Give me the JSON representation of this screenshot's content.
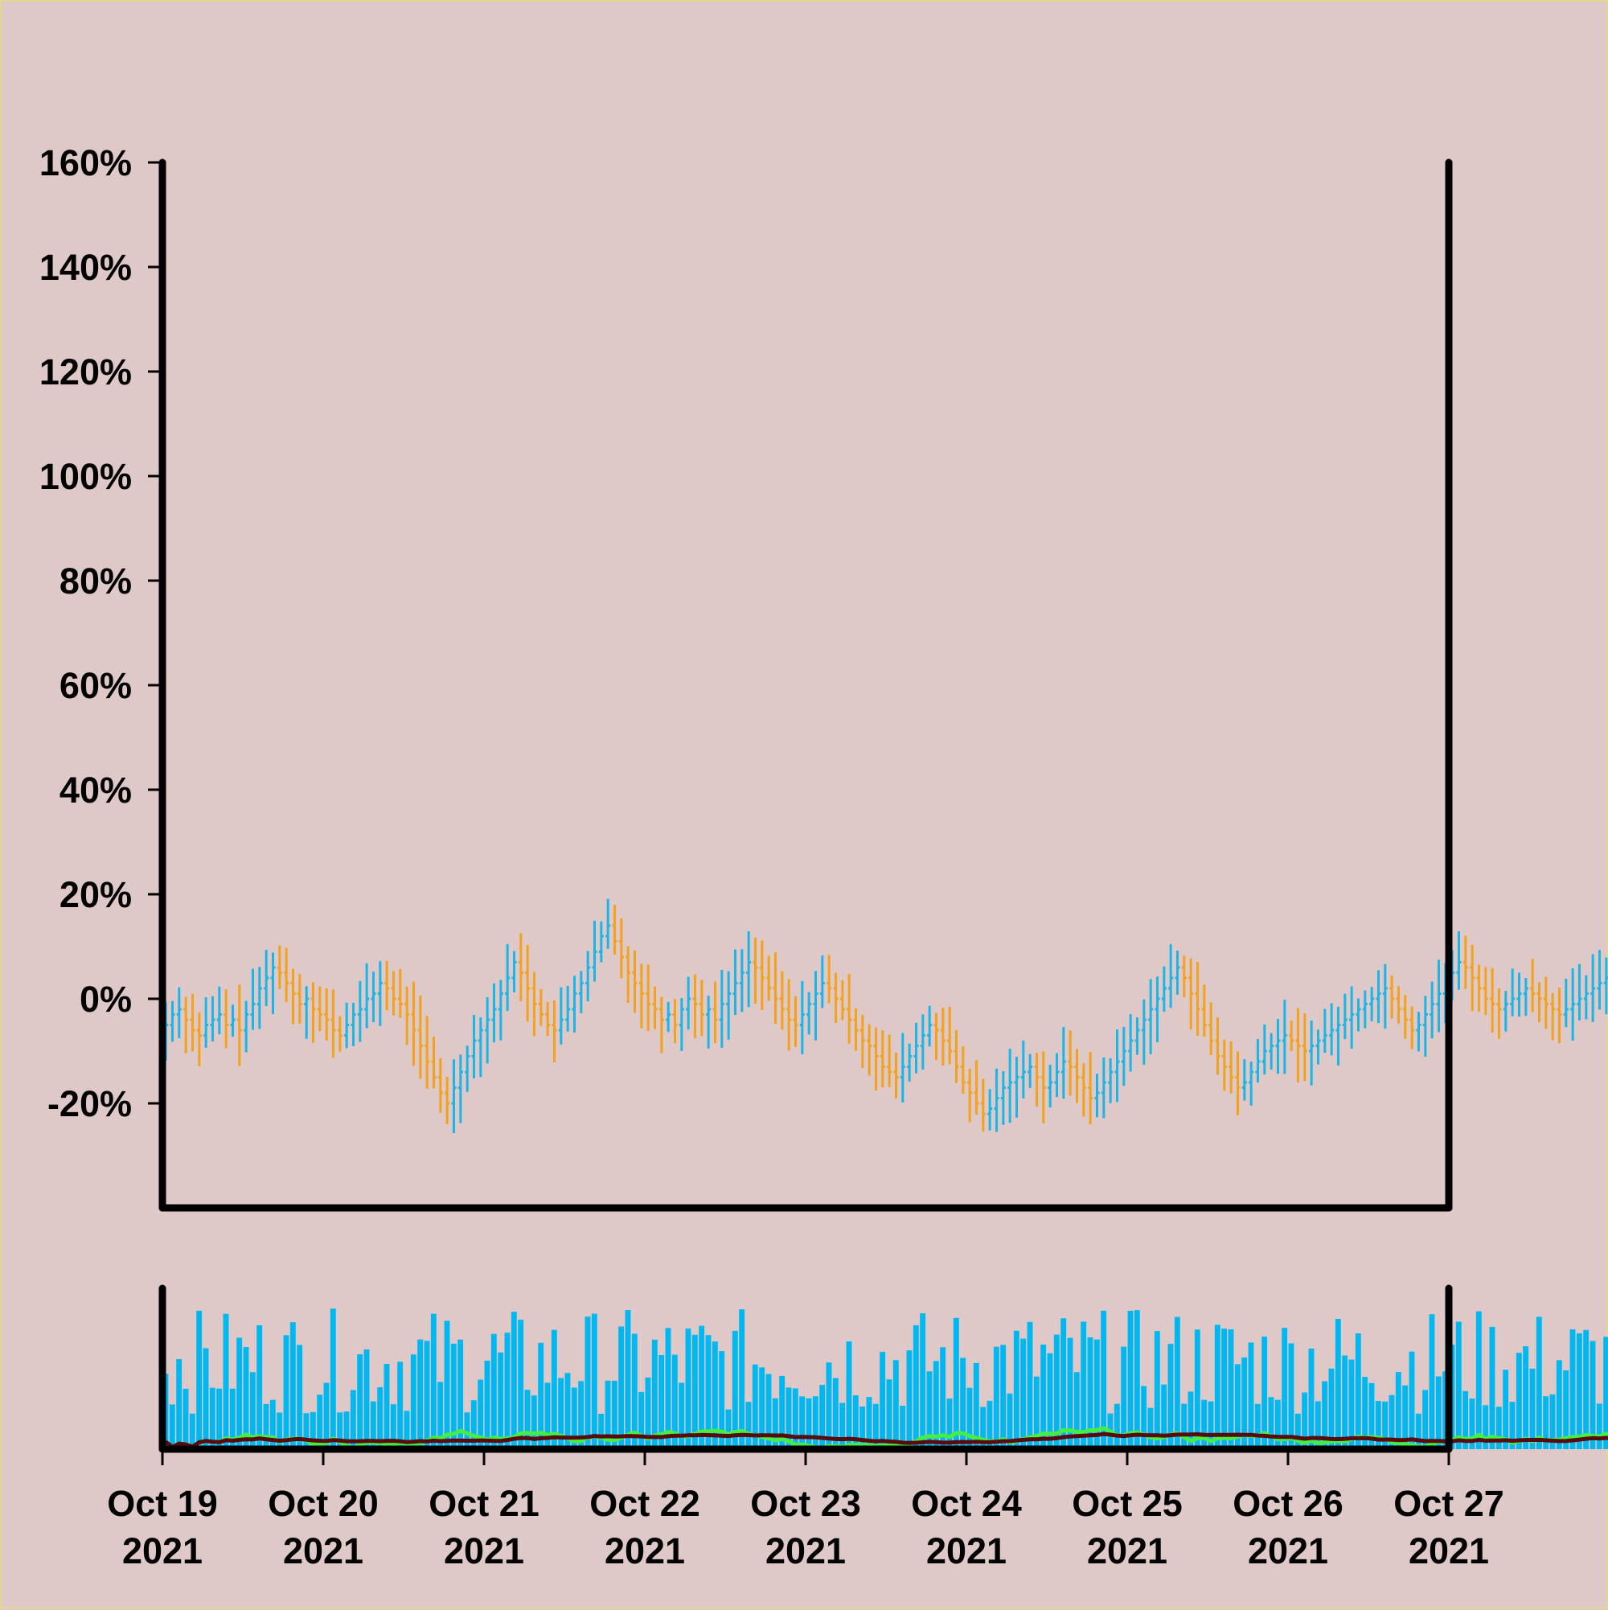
{
  "chart_data": {
    "type": "ohlc",
    "y_axis": {
      "ticks": [
        -20,
        0,
        20,
        40,
        60,
        80,
        100,
        120,
        140,
        160
      ],
      "tick_labels": [
        "-20%",
        "0%",
        "20%",
        "40%",
        "60%",
        "80%",
        "100%",
        "120%",
        "140%",
        "160%"
      ],
      "range": [
        -40,
        160
      ]
    },
    "x_axis": {
      "ticks": [
        {
          "date": "2021-10-19",
          "line1": "Oct 19",
          "line2": "2021"
        },
        {
          "date": "2021-10-20",
          "line1": "Oct 20",
          "line2": "2021"
        },
        {
          "date": "2021-10-21",
          "line1": "Oct 21",
          "line2": "2021"
        },
        {
          "date": "2021-10-22",
          "line1": "Oct 22",
          "line2": "2021"
        },
        {
          "date": "2021-10-23",
          "line1": "Oct 23",
          "line2": "2021"
        },
        {
          "date": "2021-10-24",
          "line1": "Oct 24",
          "line2": "2021"
        },
        {
          "date": "2021-10-25",
          "line1": "Oct 25",
          "line2": "2021"
        },
        {
          "date": "2021-10-26",
          "line1": "Oct 26",
          "line2": "2021"
        },
        {
          "date": "2021-10-27",
          "line1": "Oct 27",
          "line2": "2021"
        }
      ],
      "range": [
        "2021-10-19",
        "2021-10-27"
      ]
    },
    "bar_interval_hours": 1,
    "price_series": {
      "close_percent": [
        -5,
        -3,
        -2,
        -4,
        -6,
        -7,
        -5,
        -4,
        -3,
        -5,
        -4,
        -6,
        -3,
        -1,
        2,
        4,
        6,
        5,
        3,
        1,
        -1,
        0,
        -2,
        -3,
        -4,
        -6,
        -7,
        -5,
        -3,
        -2,
        0,
        1,
        3,
        2,
        0,
        -1,
        -3,
        -6,
        -9,
        -12,
        -15,
        -18,
        -20,
        -17,
        -14,
        -11,
        -8,
        -6,
        -4,
        -2,
        1,
        4,
        7,
        5,
        2,
        -1,
        -3,
        -5,
        -6,
        -4,
        -2,
        1,
        3,
        6,
        9,
        12,
        14,
        11,
        8,
        5,
        3,
        1,
        -1,
        -2,
        -4,
        -3,
        -5,
        -2,
        0,
        -1,
        -3,
        -2,
        -4,
        -1,
        1,
        3,
        5,
        7,
        6,
        4,
        2,
        0,
        -2,
        -4,
        -5,
        -3,
        -1,
        1,
        3,
        2,
        0,
        -2,
        -4,
        -6,
        -8,
        -9,
        -11,
        -13,
        -14,
        -15,
        -13,
        -11,
        -9,
        -7,
        -5,
        -6,
        -8,
        -10,
        -13,
        -16,
        -18,
        -20,
        -22,
        -21,
        -19,
        -17,
        -16,
        -15,
        -14,
        -13,
        -15,
        -17,
        -16,
        -14,
        -12,
        -13,
        -15,
        -17,
        -19,
        -18,
        -16,
        -14,
        -12,
        -10,
        -8,
        -6,
        -4,
        -2,
        0,
        2,
        4,
        6,
        4,
        1,
        -2,
        -5,
        -8,
        -11,
        -13,
        -15,
        -17,
        -16,
        -14,
        -12,
        -10,
        -9,
        -8,
        -7,
        -8,
        -9,
        -10,
        -9,
        -8,
        -7,
        -6,
        -5,
        -4,
        -3,
        -2,
        -1,
        0,
        1,
        2,
        0,
        -2,
        -4,
        -6,
        -5,
        -3,
        -1,
        1,
        3,
        5,
        7,
        6,
        4,
        2,
        0,
        -1,
        -2,
        -1,
        0,
        1,
        2,
        1,
        0,
        -1,
        -2,
        -3,
        -2,
        -1,
        0,
        1,
        2,
        3,
        4,
        5,
        6,
        7,
        8
      ],
      "up_color": "#1ab6e8",
      "down_color": "#f2a21c"
    },
    "volume_series": {
      "color": "#00b8f0"
    },
    "volume_ma_fast": {
      "color": "#44ee44"
    },
    "volume_ma_slow": {
      "color": "#5a0a0a"
    },
    "background_color": "#dfc8c8",
    "grid": false,
    "legend": "none"
  }
}
